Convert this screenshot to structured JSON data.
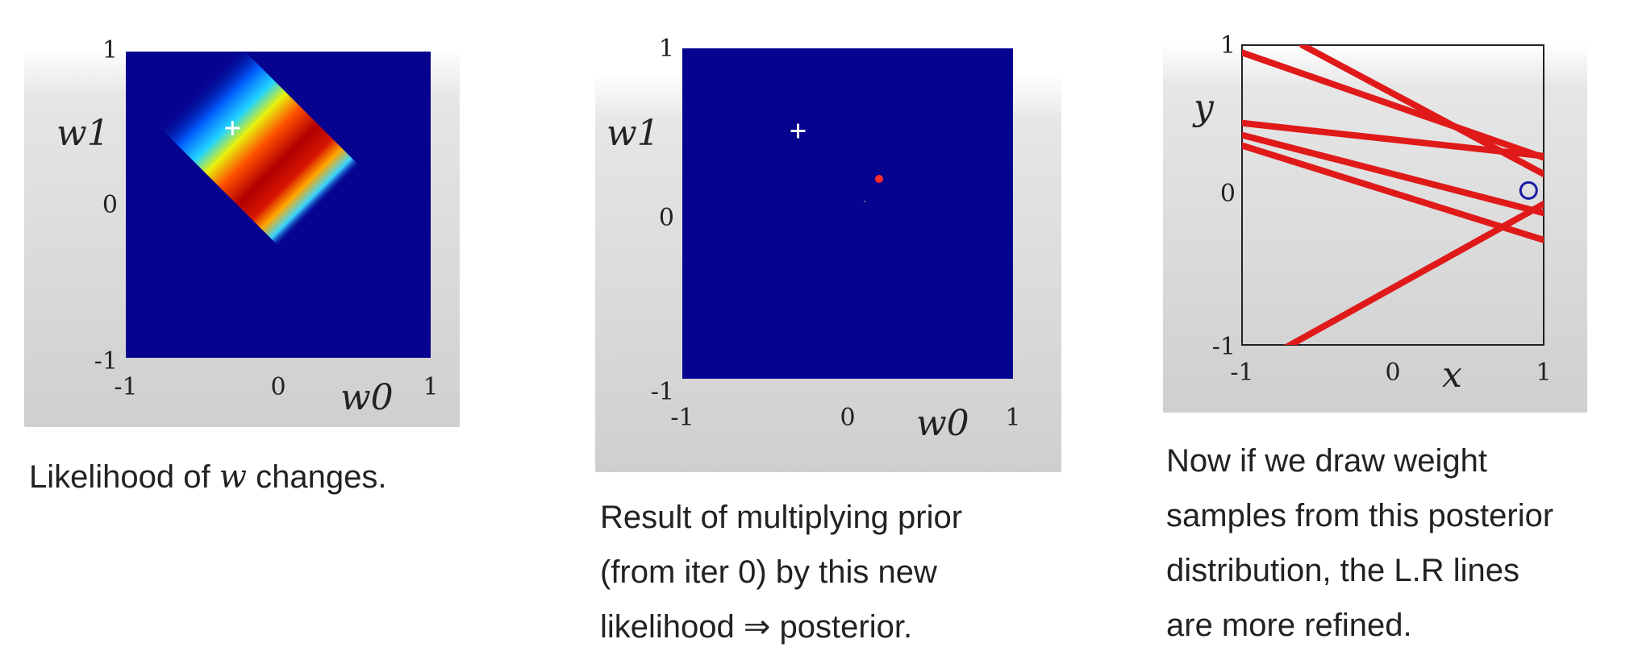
{
  "panels": [
    {
      "id": "likelihood",
      "y_var": "w1",
      "x_var": "w0",
      "x_ticks": [
        "-1",
        "0",
        "1"
      ],
      "y_ticks": [
        "1",
        "0",
        "-1"
      ],
      "caption_parts": [
        "Likelihood of ",
        "w",
        " changes."
      ]
    },
    {
      "id": "posterior",
      "y_var": "w1",
      "x_var": "w0",
      "x_ticks": [
        "-1",
        "0",
        "1"
      ],
      "y_ticks": [
        "1",
        "0",
        "-1"
      ],
      "caption_lines": [
        "Result of multiplying prior",
        "(from iter 0) by this new",
        "likelihood ⇒ posterior."
      ]
    },
    {
      "id": "samples",
      "y_var": "y",
      "x_var": "x",
      "x_ticks": [
        "-1",
        "0",
        "1"
      ],
      "y_ticks": [
        "1",
        "0",
        "-1"
      ],
      "caption_lines": [
        "Now if we draw weight",
        "samples from this posterior",
        "distribution, the L.R lines",
        "are more refined."
      ]
    }
  ],
  "chart_data": [
    {
      "type": "heatmap",
      "title": "",
      "xlabel": "w0",
      "ylabel": "w1",
      "xlim": [
        -1,
        1
      ],
      "ylim": [
        -1,
        1
      ],
      "colormap": "jet",
      "marker_true_weight": {
        "x": -0.3,
        "y": 0.5
      }
    },
    {
      "type": "heatmap",
      "title": "",
      "xlabel": "w0",
      "ylabel": "w1",
      "xlim": [
        -1,
        1
      ],
      "ylim": [
        -1,
        1
      ],
      "colormap": "jet",
      "marker_true_weight": {
        "x": -0.3,
        "y": 0.5
      }
    },
    {
      "type": "line",
      "title": "",
      "xlabel": "x",
      "ylabel": "y",
      "xlim": [
        -1,
        1
      ],
      "ylim": [
        -1,
        1
      ],
      "series_color": "#e01919",
      "lines": [
        {
          "x": [
            -1,
            1
          ],
          "y": [
            0.95,
            0.25
          ]
        },
        {
          "x": [
            -1,
            1
          ],
          "y": [
            0.48,
            0.26
          ]
        },
        {
          "x": [
            -1,
            1
          ],
          "y": [
            0.4,
            -0.12
          ]
        },
        {
          "x": [
            -1,
            1
          ],
          "y": [
            0.33,
            -0.3
          ]
        },
        {
          "x": [
            -1,
            1
          ],
          "y": [
            -1.18,
            -0.06
          ]
        },
        {
          "x": [
            -0.6,
            1
          ],
          "y": [
            1.0,
            0.14
          ]
        }
      ],
      "data_point": {
        "x": 0.9,
        "y": 0.03,
        "color": "#1a1aa6"
      }
    }
  ]
}
